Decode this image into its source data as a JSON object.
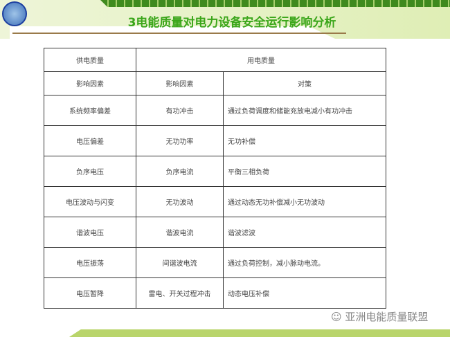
{
  "header": {
    "title": "3电能质量对电力设备安全运行影响分析"
  },
  "table": {
    "top_header": [
      "供电质量",
      "用电质量"
    ],
    "sub_header": [
      "影响因素",
      "影响因素",
      "对策"
    ],
    "rows": [
      [
        "系统频率偏差",
        "有功冲击",
        "通过负荷调度和储能充放电减小有功冲击"
      ],
      [
        "电压偏差",
        "无功功率",
        "无功补偿"
      ],
      [
        "负序电压",
        "负序电流",
        "平衡三相负荷"
      ],
      [
        "电压波动与闪变",
        "无功波动",
        "通过动态无功补偿减小无功波动"
      ],
      [
        "谐波电压",
        "谐波电流",
        "谐波滤波"
      ],
      [
        "电压振荡",
        "间谐波电流",
        "通过负荷控制，减小脉动电流。"
      ],
      [
        "电压暂降",
        "雷电、开关过程冲击",
        "动态电压补偿"
      ]
    ]
  },
  "watermark": "亚洲电能质量联盟",
  "colors": {
    "title": "#3aa61a",
    "accent": "#b9d56b"
  }
}
